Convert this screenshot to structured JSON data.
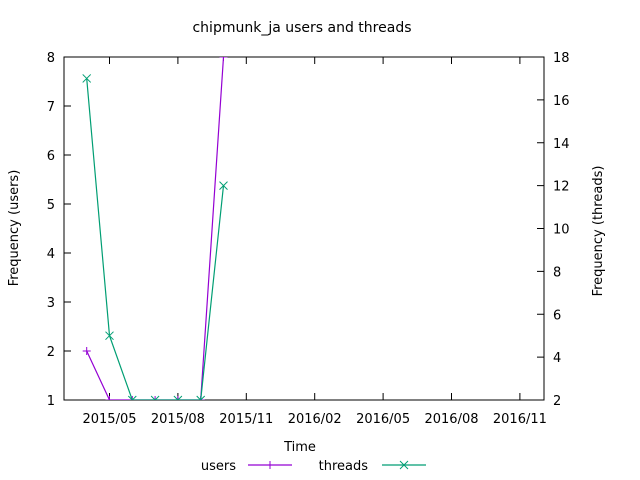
{
  "chart_data": {
    "type": "line",
    "title": "chipmunk_ja users and threads",
    "xlabel": "Time",
    "ylabel": "Frequency (users)",
    "y2label": "Frequency (threads)",
    "x_ticks": [
      "2015/05",
      "2015/08",
      "2015/11",
      "2016/02",
      "2016/05",
      "2016/08",
      "2016/11"
    ],
    "ylim": [
      1,
      8
    ],
    "y_ticks": [
      "1",
      "2",
      "3",
      "4",
      "5",
      "6",
      "7",
      "8"
    ],
    "y2lim": [
      2,
      18
    ],
    "y2_ticks": [
      "2",
      "4",
      "6",
      "8",
      "10",
      "12",
      "14",
      "16",
      "18"
    ],
    "grid": false,
    "legend": "bottom",
    "series": [
      {
        "name": "users",
        "axis": "left",
        "color": "#9400d3",
        "marker": "+",
        "x": [
          "2015-04-01",
          "2015-05-01",
          "2015-06-01",
          "2015-07-01",
          "2015-08-01",
          "2015-09-01",
          "2015-10-01"
        ],
        "y": [
          2,
          1,
          1,
          1,
          1,
          1,
          8
        ]
      },
      {
        "name": "threads",
        "axis": "right",
        "color": "#009e73",
        "marker": "x",
        "x": [
          "2015-04-01",
          "2015-05-01",
          "2015-06-01",
          "2015-07-01",
          "2015-08-01",
          "2015-09-01",
          "2015-10-01"
        ],
        "y": [
          17,
          5,
          2,
          2,
          2,
          2,
          12
        ]
      }
    ]
  }
}
